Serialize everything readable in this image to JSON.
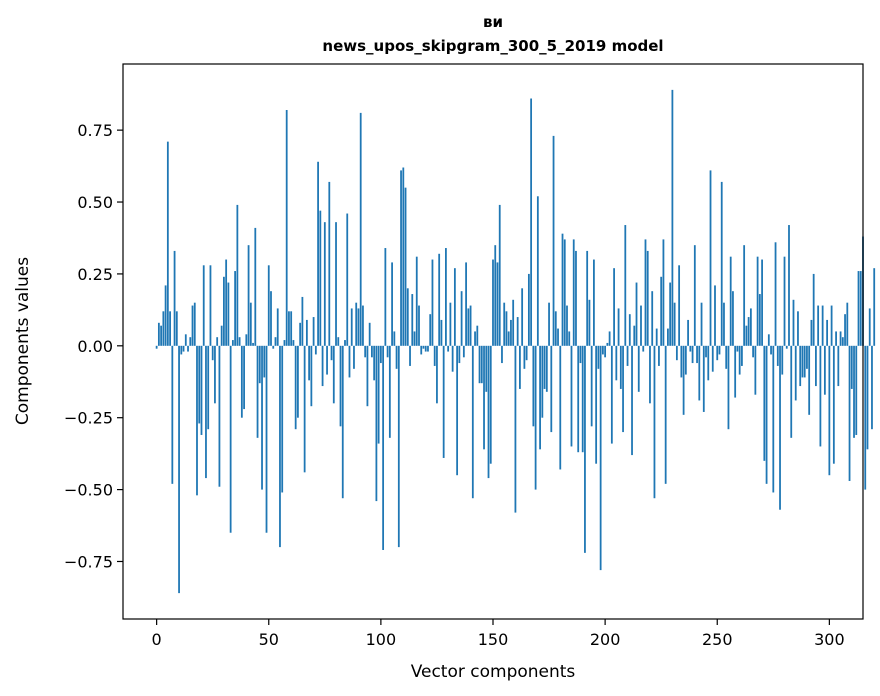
{
  "chart_data": {
    "type": "bar",
    "title_line1": "ви",
    "title_line2": "news_upos_skipgram_300_5_2019 model",
    "xlabel": "Vector components",
    "ylabel": "Components values",
    "xlim": [
      -15,
      315
    ],
    "ylim": [
      -0.95,
      0.98
    ],
    "xticks": [
      0,
      50,
      100,
      150,
      200,
      250,
      300
    ],
    "xtick_labels": [
      "0",
      "50",
      "100",
      "150",
      "200",
      "250",
      "300"
    ],
    "yticks": [
      -0.75,
      -0.5,
      -0.25,
      0.0,
      0.25,
      0.5,
      0.75
    ],
    "ytick_labels": [
      "−0.75",
      "−0.50",
      "−0.25",
      "0.00",
      "0.25",
      "0.50",
      "0.75"
    ],
    "bar_color": "#1f77b4",
    "grid": false,
    "x_start": 0,
    "values": [
      -0.01,
      0.08,
      0.07,
      0.12,
      0.21,
      0.71,
      0.12,
      -0.48,
      0.33,
      0.12,
      -0.86,
      -0.03,
      -0.02,
      0.04,
      -0.02,
      0.03,
      0.14,
      0.15,
      -0.52,
      -0.27,
      -0.31,
      0.28,
      -0.46,
      -0.29,
      0.28,
      -0.05,
      -0.2,
      0.03,
      -0.49,
      0.07,
      0.24,
      0.3,
      0.22,
      -0.65,
      0.02,
      0.26,
      0.49,
      0.03,
      -0.25,
      -0.22,
      0.04,
      0.35,
      0.15,
      0.01,
      0.41,
      -0.32,
      -0.13,
      -0.5,
      -0.11,
      -0.65,
      0.28,
      0.19,
      -0.01,
      0.03,
      0.13,
      -0.7,
      -0.51,
      0.02,
      0.82,
      0.12,
      0.12,
      0.02,
      -0.29,
      -0.25,
      0.08,
      0.17,
      -0.44,
      0.09,
      -0.12,
      -0.21,
      0.1,
      -0.03,
      0.64,
      0.47,
      -0.14,
      0.43,
      -0.1,
      0.57,
      -0.05,
      -0.2,
      0.43,
      0.03,
      -0.28,
      -0.53,
      0.02,
      0.46,
      -0.11,
      0.13,
      -0.08,
      0.15,
      0.13,
      0.81,
      0.14,
      -0.04,
      -0.21,
      0.08,
      -0.04,
      -0.12,
      -0.54,
      -0.34,
      -0.06,
      -0.71,
      0.34,
      -0.04,
      -0.32,
      0.29,
      0.05,
      -0.08,
      -0.7,
      0.61,
      0.62,
      0.55,
      0.2,
      -0.07,
      0.18,
      0.05,
      0.31,
      0.14,
      -0.03,
      -0.01,
      -0.02,
      -0.02,
      0.11,
      0.3,
      -0.07,
      -0.2,
      0.32,
      0.09,
      -0.39,
      0.34,
      -0.02,
      0.15,
      -0.09,
      0.27,
      -0.45,
      -0.06,
      0.19,
      -0.04,
      0.29,
      0.13,
      0.14,
      -0.53,
      0.05,
      0.07,
      -0.13,
      -0.13,
      -0.36,
      -0.16,
      -0.46,
      -0.41,
      0.3,
      0.35,
      0.29,
      0.49,
      -0.06,
      0.15,
      0.12,
      0.05,
      0.09,
      0.16,
      -0.58,
      0.1,
      -0.15,
      0.2,
      -0.08,
      -0.05,
      0.25,
      0.86,
      -0.28,
      -0.5,
      0.52,
      -0.36,
      -0.25,
      -0.15,
      -0.16,
      0.15,
      -0.3,
      0.73,
      0.12,
      0.06,
      -0.43,
      0.39,
      0.37,
      0.14,
      0.05,
      -0.35,
      0.37,
      0.33,
      -0.37,
      -0.06,
      -0.37,
      -0.72,
      0.33,
      0.16,
      -0.28,
      0.3,
      -0.41,
      -0.08,
      -0.78,
      -0.03,
      -0.04,
      0.01,
      0.05,
      -0.34,
      0.27,
      -0.12,
      0.13,
      -0.15,
      -0.3,
      0.42,
      -0.07,
      0.11,
      -0.38,
      0.07,
      0.22,
      -0.16,
      0.14,
      -0.02,
      0.37,
      0.33,
      -0.2,
      0.19,
      -0.53,
      0.06,
      -0.07,
      0.24,
      0.37,
      -0.48,
      0.06,
      0.22,
      0.89,
      0.15,
      -0.05,
      0.28,
      -0.11,
      -0.24,
      -0.1,
      0.09,
      -0.02,
      -0.06,
      0.35,
      -0.06,
      -0.19,
      0.15,
      -0.23,
      -0.04,
      -0.12,
      0.61,
      -0.09,
      0.21,
      -0.05,
      -0.03,
      0.57,
      0.15,
      -0.08,
      -0.29,
      0.31,
      0.19,
      -0.18,
      -0.02,
      -0.1,
      -0.07,
      0.35,
      0.07,
      0.1,
      0.13,
      -0.04,
      -0.17,
      0.31,
      0.18,
      0.3,
      -0.4,
      -0.48,
      0.04,
      -0.03,
      -0.51,
      0.36,
      -0.07,
      -0.57,
      -0.1,
      0.31,
      -0.01,
      0.42,
      -0.32,
      0.16,
      -0.19,
      0.12,
      -0.14,
      -0.11,
      -0.11,
      -0.08,
      -0.24,
      0.09,
      0.25,
      -0.14,
      0.14,
      -0.35,
      0.14,
      -0.17,
      0.09,
      -0.45,
      0.14,
      -0.41,
      0.05,
      -0.14,
      0.05,
      0.03,
      0.11,
      0.15,
      -0.47,
      -0.15,
      -0.32,
      -0.31,
      0.26,
      0.26,
      0.38,
      -0.5,
      -0.36,
      0.13,
      -0.29,
      0.27
    ]
  }
}
